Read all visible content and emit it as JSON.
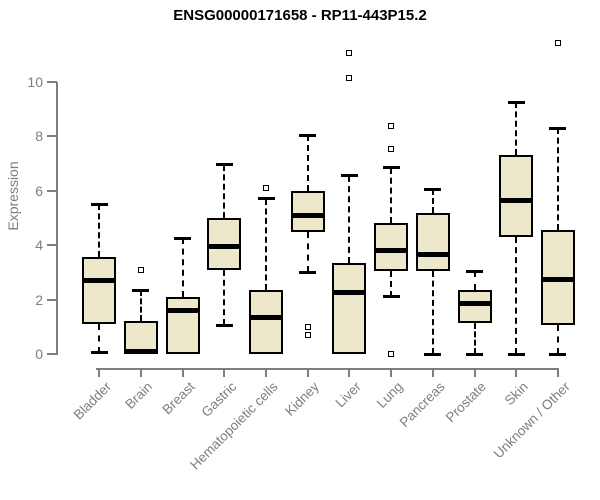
{
  "title": "ENSG00000171658 - RP11-443P15.2",
  "chart_data": {
    "type": "boxplot",
    "title": "ENSG00000171658 - RP11-443P15.2",
    "xlabel": "",
    "ylabel": "Expression",
    "yticks": [
      0,
      2,
      4,
      6,
      8,
      10
    ],
    "ylim": [
      0,
      11.8
    ],
    "grid": false,
    "legend": null,
    "categories": [
      "Bladder",
      "Brain",
      "Breast",
      "Gastric",
      "Hematopoietic cells",
      "Kidney",
      "Liver",
      "Lung",
      "Pancreas",
      "Prostate",
      "Skin",
      "Unknown / Other"
    ],
    "series": [
      {
        "category": "Bladder",
        "whisker_low": 0.05,
        "q1": 1.1,
        "median": 2.7,
        "q3": 3.55,
        "whisker_high": 5.5,
        "outliers": []
      },
      {
        "category": "Brain",
        "whisker_low": 0,
        "q1": 0,
        "median": 0.1,
        "q3": 1.2,
        "whisker_high": 2.35,
        "outliers": [
          3.1
        ]
      },
      {
        "category": "Breast",
        "whisker_low": 0,
        "q1": 0,
        "median": 1.6,
        "q3": 2.1,
        "whisker_high": 4.25,
        "outliers": []
      },
      {
        "category": "Gastric",
        "whisker_low": 1.05,
        "q1": 3.1,
        "median": 3.95,
        "q3": 5.0,
        "whisker_high": 6.95,
        "outliers": []
      },
      {
        "category": "Hematopoietic cells",
        "whisker_low": 0,
        "q1": 0,
        "median": 1.35,
        "q3": 2.35,
        "whisker_high": 5.7,
        "outliers": [
          6.1
        ]
      },
      {
        "category": "Kidney",
        "whisker_low": 3.0,
        "q1": 4.5,
        "median": 5.1,
        "q3": 6.0,
        "whisker_high": 8.05,
        "outliers": [
          1.0,
          0.7
        ]
      },
      {
        "category": "Liver",
        "whisker_low": 0,
        "q1": 0,
        "median": 2.25,
        "q3": 3.35,
        "whisker_high": 6.55,
        "outliers": [
          10.15,
          11.05
        ]
      },
      {
        "category": "Lung",
        "whisker_low": 2.1,
        "q1": 3.05,
        "median": 3.8,
        "q3": 4.8,
        "whisker_high": 6.85,
        "outliers": [
          7.55,
          8.4,
          0.0
        ]
      },
      {
        "category": "Pancreas",
        "whisker_low": 0,
        "q1": 3.05,
        "median": 3.65,
        "q3": 5.2,
        "whisker_high": 6.05,
        "outliers": []
      },
      {
        "category": "Prostate",
        "whisker_low": 0,
        "q1": 1.15,
        "median": 1.85,
        "q3": 2.35,
        "whisker_high": 3.05,
        "outliers": []
      },
      {
        "category": "Skin",
        "whisker_low": 0,
        "q1": 4.3,
        "median": 5.65,
        "q3": 7.3,
        "whisker_high": 9.25,
        "outliers": []
      },
      {
        "category": "Unknown / Other",
        "whisker_low": 0,
        "q1": 1.05,
        "median": 2.75,
        "q3": 4.55,
        "whisker_high": 8.3,
        "outliers": [
          11.45
        ]
      }
    ],
    "colors": {
      "box_fill": "#ede8cc",
      "box_border": "#000000",
      "median": "#000000",
      "whisker": "#000000",
      "outlier_fill": "#ffffff",
      "axis": "#7e7e7e",
      "tick_label": "#7e7e7e",
      "axis_label": "#7e7e7e",
      "title": "#000000",
      "background": "#ffffff"
    }
  }
}
